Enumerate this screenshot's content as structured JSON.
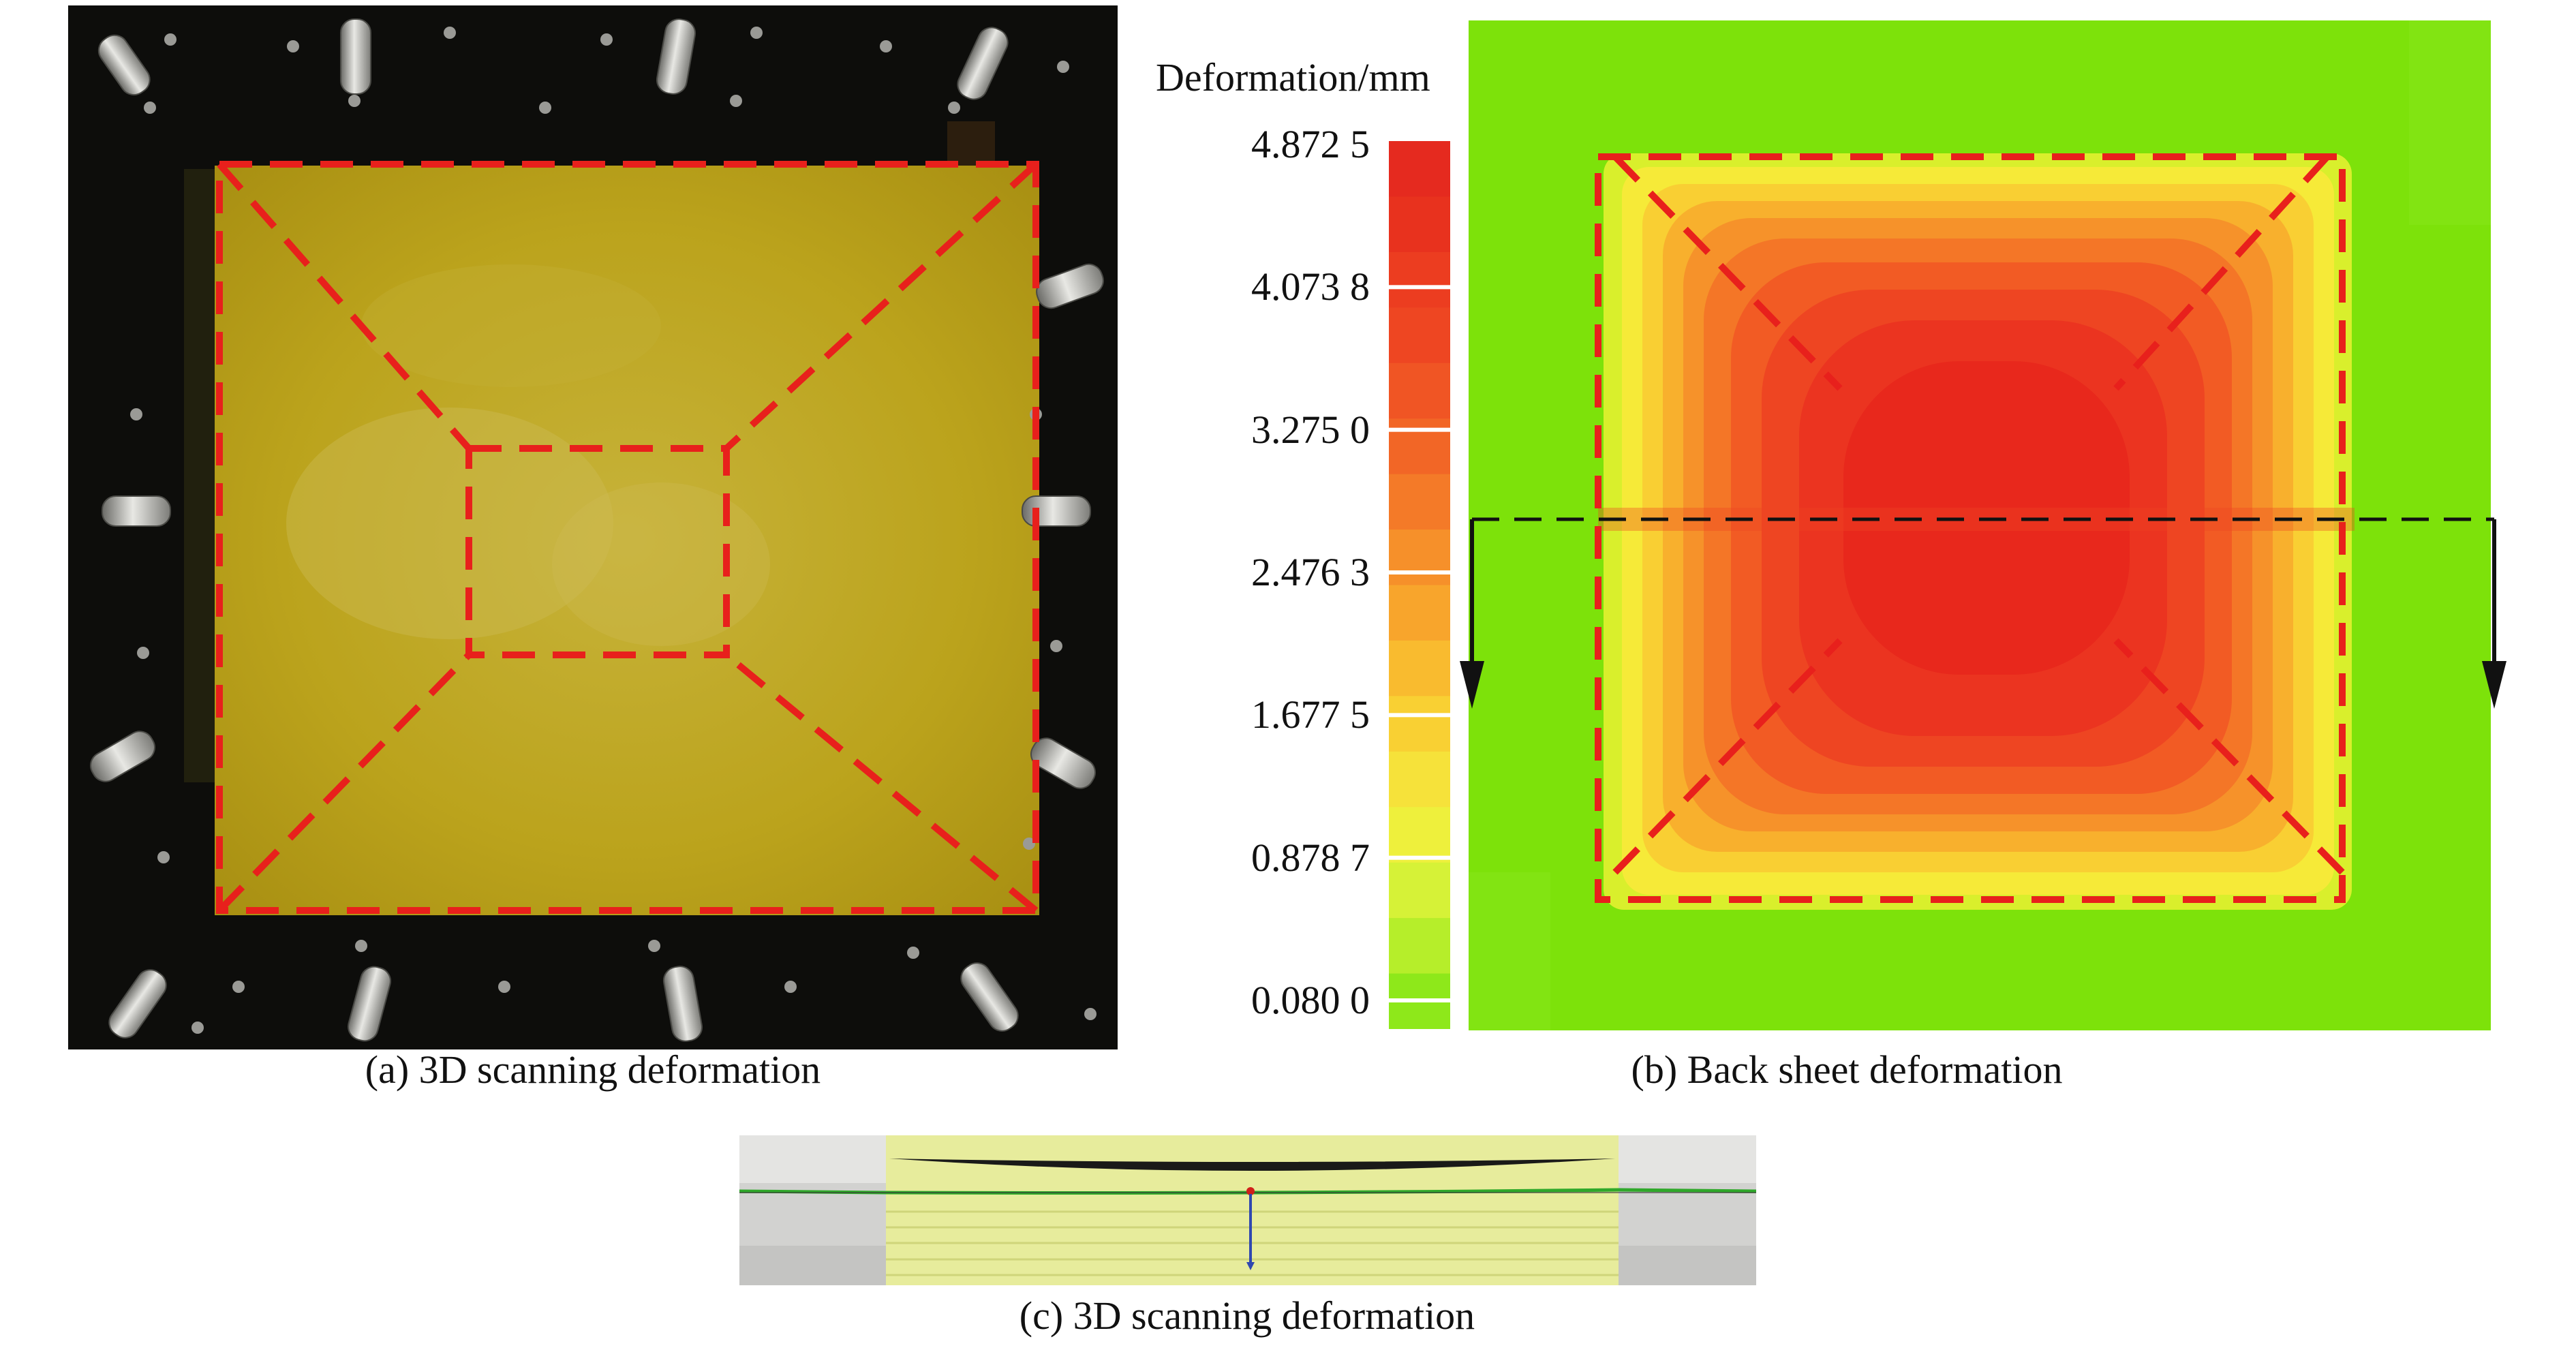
{
  "legend": {
    "title": "Deformation/mm",
    "ticks": [
      "4.872 5",
      "4.073 8",
      "3.275 0",
      "2.476 3",
      "1.677 5",
      "0.878 7",
      "0.080 0"
    ],
    "colors": [
      "#e52a1f",
      "#e8321e",
      "#ec3d20",
      "#ee4622",
      "#f05524",
      "#f26626",
      "#f47a28",
      "#f6902a",
      "#f8a52c",
      "#f9bb2f",
      "#f9d033",
      "#f6e23a",
      "#eef03c",
      "#d6f237",
      "#b6ee2a",
      "#8ee81a"
    ]
  },
  "captions": {
    "a": "(a) 3D scanning deformation",
    "b": "(b) Back sheet deformation",
    "c": "(c) 3D scanning deformation"
  },
  "colors": {
    "dash_red": "#e8201c",
    "plate_yellow": "#b9a21a",
    "frame_black": "#0d0d0b",
    "fem_green": "#7de20a",
    "fem_red": "#e8281c"
  }
}
